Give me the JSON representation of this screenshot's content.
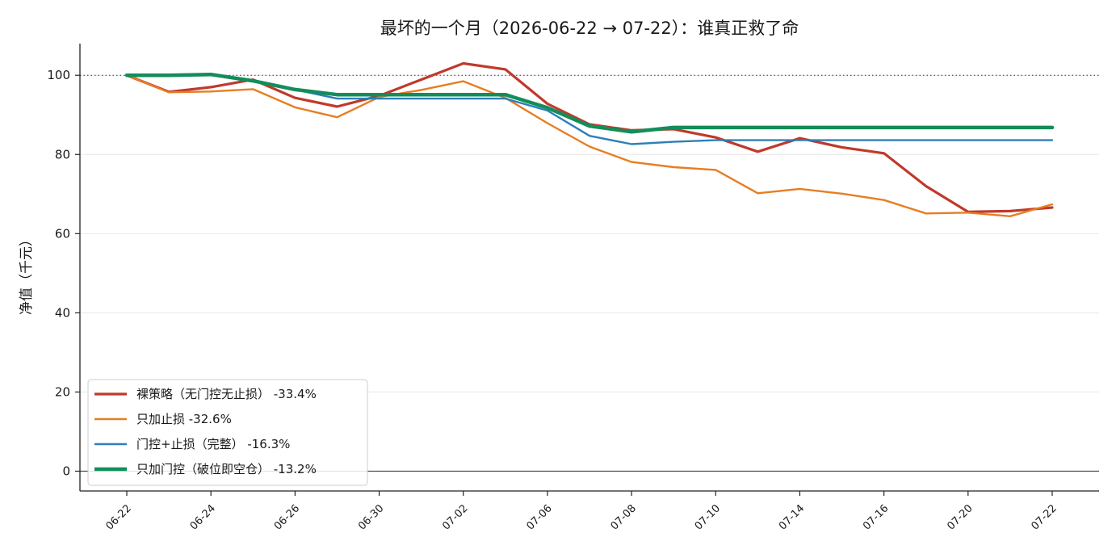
{
  "chart_data": {
    "type": "line",
    "title": "最坏的一个月（2026-06-22 → 07-22）：谁真正救了命",
    "xlabel": "",
    "ylabel": "净值（千元）",
    "ylim": [
      -5,
      108
    ],
    "yticks": [
      0,
      20,
      40,
      60,
      80,
      100
    ],
    "reference_line": 100,
    "grid": "horizontal",
    "legend_placement": "bottom-left",
    "x_tick_labels": [
      "06-22",
      "06-24",
      "06-26",
      "06-30",
      "07-02",
      "07-06",
      "07-08",
      "07-10",
      "07-14",
      "07-16",
      "07-20",
      "07-22"
    ],
    "series": [
      {
        "name": "裸策略（无门控无止损）  -33.4%",
        "color": "#c0392b",
        "width": 3.2,
        "values": [
          100,
          95.8,
          97,
          98.9,
          94.3,
          92.1,
          94.8,
          98.9,
          103,
          101.5,
          92.8,
          87.6,
          86.1,
          86.4,
          84.3,
          80.7,
          84.1,
          81.8,
          80.3,
          72,
          65.5,
          65.7,
          66.6
        ]
      },
      {
        "name": "只加止损 -32.6%",
        "color": "#e67e22",
        "width": 2.4,
        "values": [
          100,
          95.7,
          95.9,
          96.5,
          91.9,
          89.4,
          94.5,
          96.3,
          98.5,
          94.3,
          87.9,
          82,
          78.1,
          76.8,
          76.1,
          70.2,
          71.3,
          70.1,
          68.5,
          65.1,
          65.3,
          64.4,
          67.4
        ]
      },
      {
        "name": "门控+止损（完整）  -16.3%",
        "color": "#2e7fb8",
        "width": 2.4,
        "values": [
          100,
          100,
          100,
          98.7,
          96.4,
          94.1,
          94.1,
          94.1,
          94.1,
          94.1,
          91.1,
          84.7,
          82.6,
          83.2,
          83.6,
          83.6,
          83.6,
          83.6,
          83.6,
          83.6,
          83.6,
          83.6,
          83.6
        ]
      },
      {
        "name": "只加门控（破位即空仓）  -13.2%",
        "color": "#138d5a",
        "width": 4.5,
        "values": [
          100,
          100,
          100.2,
          98.6,
          96.4,
          95.1,
          95.1,
          95.1,
          95.1,
          95.1,
          91.8,
          87.2,
          85.7,
          86.8,
          86.8,
          86.8,
          86.8,
          86.8,
          86.8,
          86.8,
          86.8,
          86.8,
          86.8
        ]
      }
    ]
  }
}
